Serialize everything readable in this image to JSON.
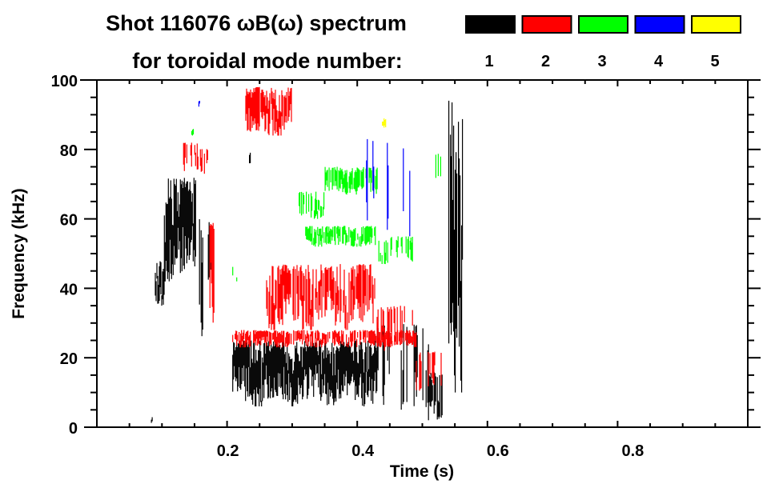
{
  "chart_data": {
    "type": "heatmap",
    "title_line1": "Shot 116076 ωB(ω) spectrum",
    "title_line2": "for toroidal mode number:",
    "xlabel": "Time (s)",
    "ylabel": "Frequency (kHz)",
    "xlim": [
      0,
      1.0
    ],
    "ylim": [
      0,
      100
    ],
    "xticks": [
      {
        "v": 0.2,
        "label": "0.2"
      },
      {
        "v": 0.4,
        "label": "0.4"
      },
      {
        "v": 0.6,
        "label": "0.6"
      },
      {
        "v": 0.8,
        "label": "0.8"
      }
    ],
    "yticks": [
      {
        "v": 0,
        "label": "0"
      },
      {
        "v": 20,
        "label": "20"
      },
      {
        "v": 40,
        "label": "40"
      },
      {
        "v": 60,
        "label": "60"
      },
      {
        "v": 80,
        "label": "80"
      },
      {
        "v": 100,
        "label": "100"
      }
    ],
    "x_minor_step": 0.05,
    "y_minor_step": 5,
    "legend": {
      "placement": "top-right",
      "entries": [
        {
          "mode": "1",
          "color": "#000000"
        },
        {
          "mode": "2",
          "color": "#ff0000"
        },
        {
          "mode": "3",
          "color": "#00ff00"
        },
        {
          "mode": "4",
          "color": "#0000ff"
        },
        {
          "mode": "5",
          "color": "#ffff00"
        }
      ]
    },
    "features": [
      {
        "mode": 1,
        "t": [
          0.089,
          0.103
        ],
        "f": [
          35,
          48
        ],
        "density": 0.9
      },
      {
        "mode": 1,
        "t": [
          0.103,
          0.152
        ],
        "f": [
          42,
          72
        ],
        "density": 1.0
      },
      {
        "mode": 1,
        "t": [
          0.152,
          0.177
        ],
        "f": [
          24,
          63
        ],
        "density": 0.4
      },
      {
        "mode": 1,
        "t": [
          0.208,
          0.43
        ],
        "f": [
          6,
          25
        ],
        "density": 1.0
      },
      {
        "mode": 1,
        "t": [
          0.43,
          0.51
        ],
        "f": [
          2,
          30
        ],
        "density": 0.25
      },
      {
        "mode": 1,
        "t": [
          0.51,
          0.53
        ],
        "f": [
          2,
          16
        ],
        "density": 0.8
      },
      {
        "mode": 1,
        "t": [
          0.54,
          0.562
        ],
        "f": [
          10,
          96
        ],
        "density": 0.9
      },
      {
        "mode": 1,
        "t": [
          0.083,
          0.085
        ],
        "f": [
          1,
          3
        ],
        "density": 1.0
      },
      {
        "mode": 1,
        "t": [
          0.23,
          0.235
        ],
        "f": [
          76,
          82
        ],
        "density": 0.6
      },
      {
        "mode": 2,
        "t": [
          0.228,
          0.3
        ],
        "f": [
          84,
          98
        ],
        "density": 0.9
      },
      {
        "mode": 2,
        "t": [
          0.13,
          0.17
        ],
        "f": [
          73,
          82
        ],
        "density": 0.5
      },
      {
        "mode": 2,
        "t": [
          0.173,
          0.18
        ],
        "f": [
          24,
          60
        ],
        "density": 0.7
      },
      {
        "mode": 2,
        "t": [
          0.208,
          0.49
        ],
        "f": [
          23,
          28
        ],
        "density": 0.8
      },
      {
        "mode": 2,
        "t": [
          0.26,
          0.43
        ],
        "f": [
          28,
          47
        ],
        "density": 0.8
      },
      {
        "mode": 2,
        "t": [
          0.43,
          0.49
        ],
        "f": [
          22,
          35
        ],
        "density": 0.5
      },
      {
        "mode": 2,
        "t": [
          0.49,
          0.53
        ],
        "f": [
          10,
          22
        ],
        "density": 0.4
      },
      {
        "mode": 3,
        "t": [
          0.35,
          0.43
        ],
        "f": [
          67,
          75
        ],
        "density": 0.8
      },
      {
        "mode": 3,
        "t": [
          0.31,
          0.35
        ],
        "f": [
          60,
          68
        ],
        "density": 0.4
      },
      {
        "mode": 3,
        "t": [
          0.32,
          0.43
        ],
        "f": [
          52,
          58
        ],
        "density": 0.8
      },
      {
        "mode": 3,
        "t": [
          0.43,
          0.485
        ],
        "f": [
          47,
          55
        ],
        "density": 0.4
      },
      {
        "mode": 3,
        "t": [
          0.208,
          0.22
        ],
        "f": [
          42,
          47
        ],
        "density": 0.4
      },
      {
        "mode": 3,
        "t": [
          0.145,
          0.148
        ],
        "f": [
          84,
          86
        ],
        "density": 1.0
      },
      {
        "mode": 3,
        "t": [
          0.52,
          0.53
        ],
        "f": [
          70,
          79
        ],
        "density": 0.4
      },
      {
        "mode": 4,
        "t": [
          0.4,
          0.48
        ],
        "f": [
          55,
          83
        ],
        "density": 0.12
      },
      {
        "mode": 4,
        "t": [
          0.156,
          0.158
        ],
        "f": [
          92,
          94
        ],
        "density": 1.0
      },
      {
        "mode": 5,
        "t": [
          0.438,
          0.443
        ],
        "f": [
          86,
          89
        ],
        "density": 1.0
      }
    ]
  }
}
